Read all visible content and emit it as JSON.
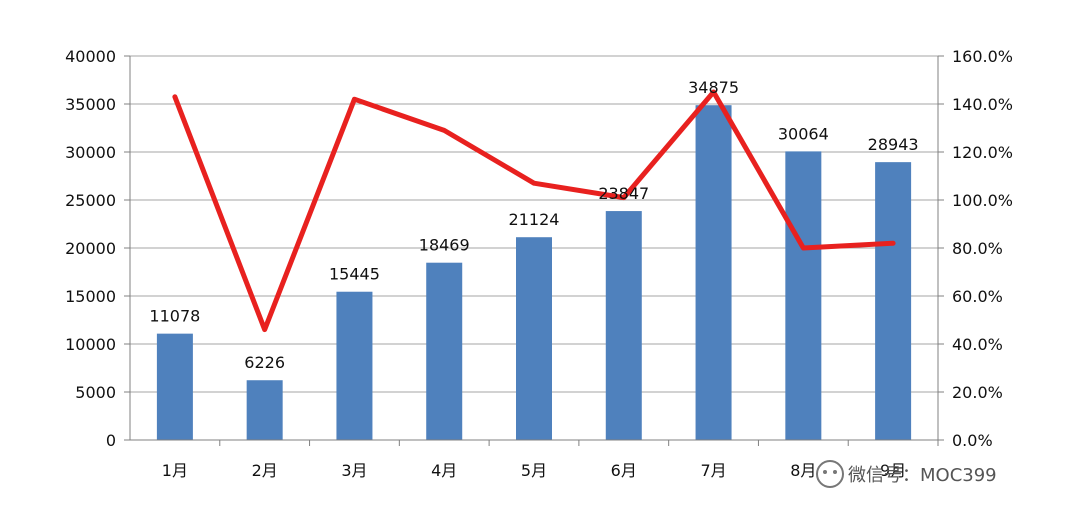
{
  "chart_data": {
    "type": "bar",
    "categories": [
      "1月",
      "2月",
      "3月",
      "4月",
      "5月",
      "6月",
      "7月",
      "8月",
      "9月"
    ],
    "values": [
      11078,
      6226,
      15445,
      18469,
      21124,
      23847,
      34875,
      30064,
      28943
    ],
    "data_labels": [
      "11078",
      "6226",
      "15445",
      "18469",
      "21124",
      "23847",
      "34875",
      "30064",
      "28943"
    ],
    "line_series": {
      "axis": "right",
      "values": [
        1.43,
        0.46,
        1.42,
        1.29,
        1.07,
        1.01,
        1.45,
        0.8,
        0.82
      ]
    },
    "ylim_left": [
      0,
      40000
    ],
    "left_ticks": [
      "0",
      "5000",
      "10000",
      "15000",
      "20000",
      "25000",
      "30000",
      "35000",
      "40000"
    ],
    "ylim_right": [
      0,
      1.6
    ],
    "right_ticks": [
      "0.0%",
      "20.0%",
      "40.0%",
      "60.0%",
      "80.0%",
      "100.0%",
      "120.0%",
      "140.0%",
      "160.0%"
    ],
    "grid": true,
    "bar_color": "#4f81bd",
    "line_color": "#e8211f"
  },
  "watermark": "微信号：MOC399"
}
